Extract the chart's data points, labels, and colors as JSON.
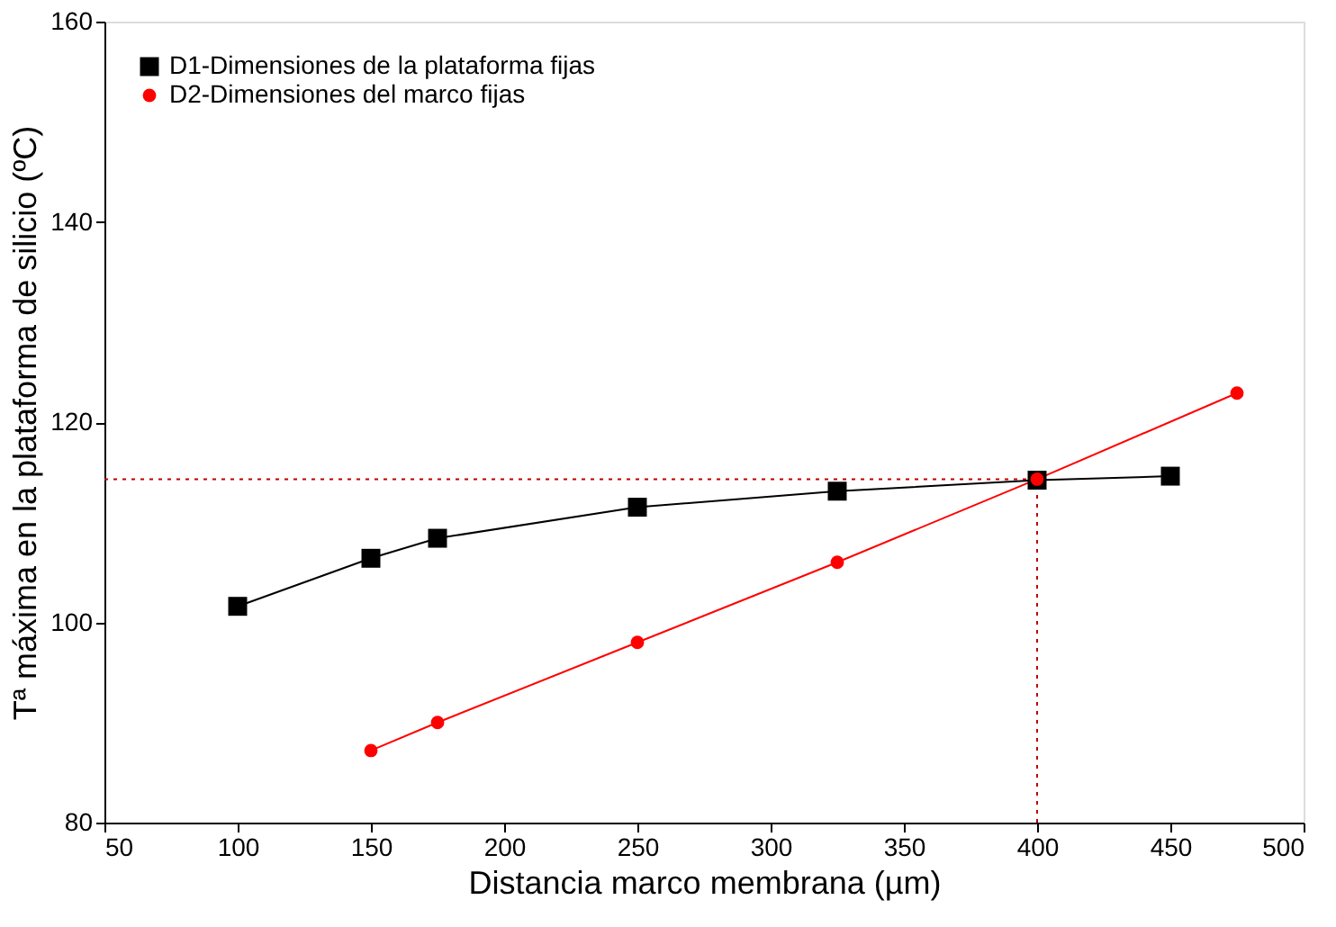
{
  "chart_data": {
    "type": "line",
    "xlabel": "Distancia marco membrana (µm)",
    "ylabel": "Tª máxima en la plataforma de silicio (ºC)",
    "xlim": [
      50,
      500
    ],
    "xticks": [
      50,
      100,
      150,
      200,
      250,
      300,
      350,
      400,
      450,
      500
    ],
    "ylim": [
      80,
      160
    ],
    "yticks": [
      80,
      100,
      120,
      140,
      160
    ],
    "series": [
      {
        "name": "D1-Dimensiones de la plataforma fijas",
        "color": "#000000",
        "marker": "square",
        "x": [
          100,
          150,
          175,
          250,
          325,
          400,
          450
        ],
        "values": [
          101.6,
          106.4,
          108.4,
          111.5,
          113.1,
          114.2,
          114.6
        ]
      },
      {
        "name": "D2-Dimensiones del marco fijas",
        "color": "#ff0000",
        "marker": "circle",
        "x": [
          150,
          175,
          250,
          325,
          400,
          475
        ],
        "values": [
          87.2,
          90.0,
          98.0,
          106.0,
          114.3,
          122.9
        ]
      }
    ],
    "ref_lines": [
      {
        "axis": "y",
        "value": 114.3,
        "color": "#c00000",
        "line_style": "dotted"
      },
      {
        "axis": "x",
        "value": 400,
        "color": "#c00000",
        "line_style": "dotted"
      }
    ],
    "line_style": "solid",
    "grid": false,
    "legend": "top left"
  }
}
